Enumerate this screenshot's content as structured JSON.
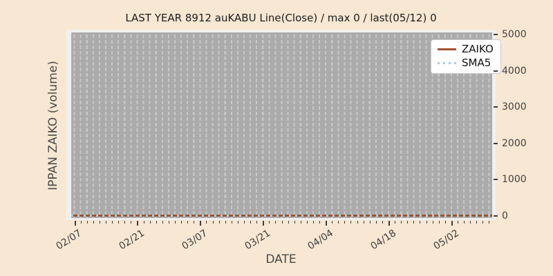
{
  "title": "LAST YEAR 8912 auKABU Line(Close) / max 0 / last(05/12) 0",
  "axes": {
    "x_label": "DATE",
    "y_label": "IPPAN ZAIKO (volume)"
  },
  "legend": {
    "position": "upper-right",
    "items": [
      {
        "label": "ZAIKO",
        "color": "#a0522d",
        "line_style": "solid"
      },
      {
        "label": "SMA5",
        "color": "#a6cee3",
        "line_style": "dotted"
      }
    ]
  },
  "chart_data": {
    "type": "line",
    "title": "LAST YEAR 8912 auKABU Line(Close) / max 0 / last(05/12) 0",
    "xlabel": "DATE",
    "ylabel": "IPPAN ZAIKO (volume)",
    "x_ticklabels": [
      "02/07",
      "02/21",
      "03/07",
      "03/21",
      "04/04",
      "04/18",
      "05/02"
    ],
    "x_range": [
      "02/07",
      "05/12"
    ],
    "y_ticks": [
      0,
      1000,
      2000,
      3000,
      4000,
      5000
    ],
    "ylim": [
      0,
      5000
    ],
    "grid": "vertical dashed daily gridlines on gray plot background",
    "legend_position": "upper right",
    "series": [
      {
        "name": "ZAIKO",
        "style": "solid",
        "color": "#a0522d",
        "constant_value": 0,
        "note": "flat line at 0 across entire date range"
      },
      {
        "name": "SMA5",
        "style": "dotted",
        "color": "#a6cee3",
        "constant_value": 0,
        "note": "flat dotted line at 0, overlapping ZAIKO"
      }
    ],
    "stats": {
      "max": 0,
      "last_date": "05/12",
      "last_value": 0
    }
  },
  "colors": {
    "figure_background": "#f8e7d2",
    "axes_frame": "#f0f0ef",
    "plot_background": "#ababab",
    "gridline": "#c8c8c8",
    "tick_label": "#3f3f3f",
    "title_text": "#1c1c1c"
  }
}
